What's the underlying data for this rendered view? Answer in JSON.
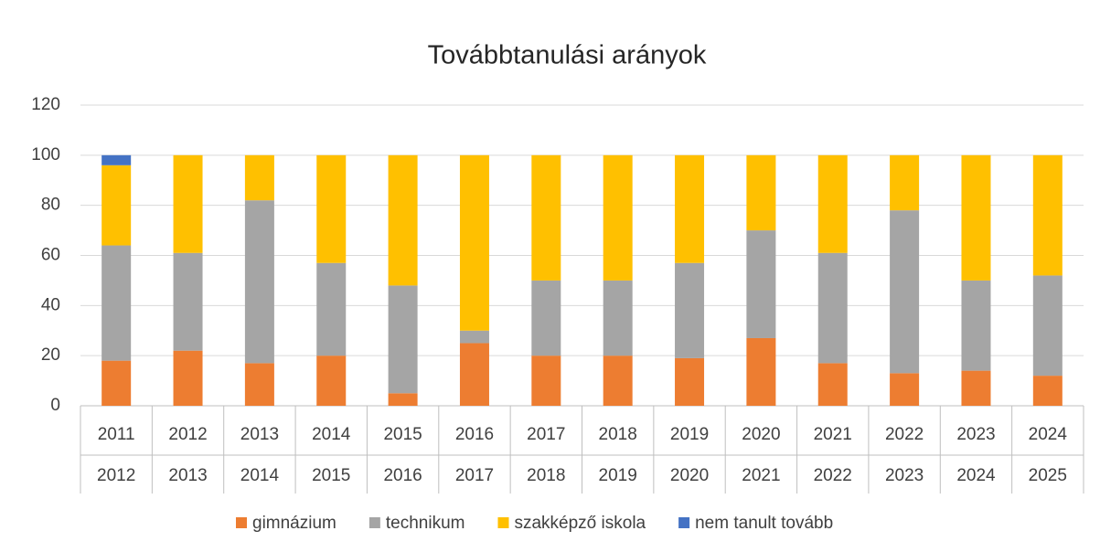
{
  "chart_data": {
    "type": "stacked_bar",
    "title": "Továbbtanulási arányok",
    "categories": [
      [
        "2011",
        "2012"
      ],
      [
        "2012",
        "2013"
      ],
      [
        "2013",
        "2014"
      ],
      [
        "2014",
        "2015"
      ],
      [
        "2015",
        "2016"
      ],
      [
        "2016",
        "2017"
      ],
      [
        "2017",
        "2018"
      ],
      [
        "2018",
        "2019"
      ],
      [
        "2019",
        "2020"
      ],
      [
        "2020",
        "2021"
      ],
      [
        "2021",
        "2022"
      ],
      [
        "2022",
        "2023"
      ],
      [
        "2023",
        "2024"
      ],
      [
        "2024",
        "2025"
      ]
    ],
    "series": [
      {
        "name": "gimnázium",
        "color": "#ed7d31",
        "values": [
          18,
          22,
          17,
          20,
          5,
          25,
          20,
          20,
          19,
          27,
          17,
          13,
          14,
          12
        ]
      },
      {
        "name": "technikum",
        "color": "#a5a5a5",
        "values": [
          46,
          39,
          65,
          37,
          43,
          5,
          30,
          30,
          38,
          43,
          44,
          65,
          36,
          40
        ]
      },
      {
        "name": "szakképző iskola",
        "color": "#ffc000",
        "values": [
          32,
          39,
          18,
          43,
          52,
          70,
          50,
          50,
          43,
          30,
          39,
          22,
          50,
          48
        ]
      },
      {
        "name": "nem tanult tovább",
        "color": "#4472c4",
        "values": [
          4,
          0,
          0,
          0,
          0,
          0,
          0,
          0,
          0,
          0,
          0,
          0,
          0,
          0
        ]
      }
    ],
    "ylim": [
      0,
      120
    ],
    "yticks": [
      0,
      20,
      40,
      60,
      80,
      100,
      120
    ],
    "grid": true,
    "legend": "bottom"
  }
}
